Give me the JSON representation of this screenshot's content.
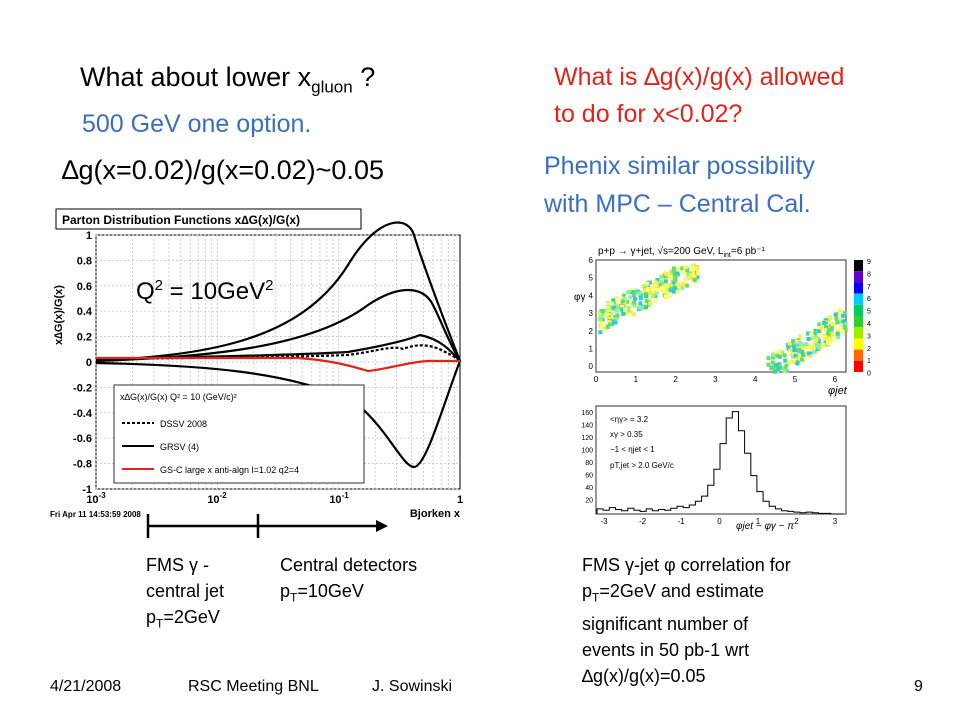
{
  "left": {
    "question": {
      "pre": "What about lower x",
      "sub": "gluon",
      "post": " ?"
    },
    "option": "500 GeV one option.",
    "ratio": "∆g(x=0.02)/g(x=0.02)~0.05"
  },
  "right": {
    "question_line1": "What is ∆g(x)/g(x)  allowed",
    "question_line2": "to do for x<0.02?",
    "phenix_line1": "Phenix similar possibility",
    "phenix_line2": "with MPC – Central Cal."
  },
  "pdf_plot": {
    "title": "Parton Distribution Functions x∆G(x)/G(x)",
    "ylabel": "x∆G(x)/G(x)",
    "xlabel": "Bjorken x",
    "q2_label": {
      "pre": "Q",
      "sup1": "2",
      "mid": " = 10GeV",
      "sup2": "2"
    },
    "timestamp": "Fri Apr 11 14:53:59 2008",
    "y_ticks": [
      "1",
      "0.8",
      "0.6",
      "0.4",
      "0.2",
      "0",
      "-0.2",
      "-0.4",
      "-0.6",
      "-0.8",
      "-1"
    ],
    "x_ticks": {
      "t1": "10",
      "t1_sup": "-3",
      "t2": "10",
      "t2_sup": "-2",
      "t3": "10",
      "t3_sup": "-1",
      "t4": "1"
    },
    "legend": {
      "header": "x∆G(x)/G(x)  Q² = 10 (GeV/c)²",
      "items": [
        "DSSV 2008",
        "GRSV (4)",
        "GS-C large x anti-algn l=1.02 q2=4"
      ]
    }
  },
  "colors": {
    "blue": "#3b6ec2",
    "red": "#e2231a"
  },
  "ranges": {
    "fms": {
      "line1": "FMS γ -",
      "line2": "central jet",
      "line3_pre": "p",
      "line3_sub": "T",
      "line3_post": "=2GeV"
    },
    "central": {
      "line1": "Central detectors",
      "line2_pre": "p",
      "line2_sub": "T",
      "line2_post": "=10GeV"
    }
  },
  "scatter_plot": {
    "title": "p+p → γ+jet, √s=200 GeV, L",
    "title_sub": "int",
    "title_post": "=6 pb⁻¹",
    "ylabel": "φγ",
    "xlabel": "φjet",
    "x_ticks": [
      "0",
      "1",
      "2",
      "3",
      "4",
      "5",
      "6"
    ],
    "y_ticks": [
      "6",
      "5",
      "4",
      "3",
      "2",
      "1",
      "0"
    ],
    "z_ticks": [
      "9",
      "8",
      "7",
      "6",
      "5",
      "4",
      "3",
      "2",
      "1",
      "0"
    ]
  },
  "histogram": {
    "y_ticks": [
      "160",
      "140",
      "120",
      "100",
      "80",
      "60",
      "40",
      "20"
    ],
    "x_ticks": [
      "-3",
      "-2",
      "-1",
      "0",
      "1",
      "2",
      "3"
    ],
    "xlabel": "φjet − φγ − π",
    "cuts": [
      "<ηγ> = 3.2",
      "xγ > 0.35",
      "−1 < ηjet < 1",
      "pT,jet > 2.0 GeV/c"
    ]
  },
  "caption": {
    "line1": "FMS γ-jet φ correlation for",
    "line2_pre": "p",
    "line2_sub": "T",
    "line2_post": "=2GeV and estimate",
    "line3": "significant number of",
    "line4": "events in 50 pb-1 wrt",
    "line5": "∆g(x)/g(x)=0.05"
  },
  "footer": {
    "date": "4/21/2008",
    "meeting": "RSC Meeting BNL",
    "author": "J. Sowinski",
    "page": "9"
  }
}
